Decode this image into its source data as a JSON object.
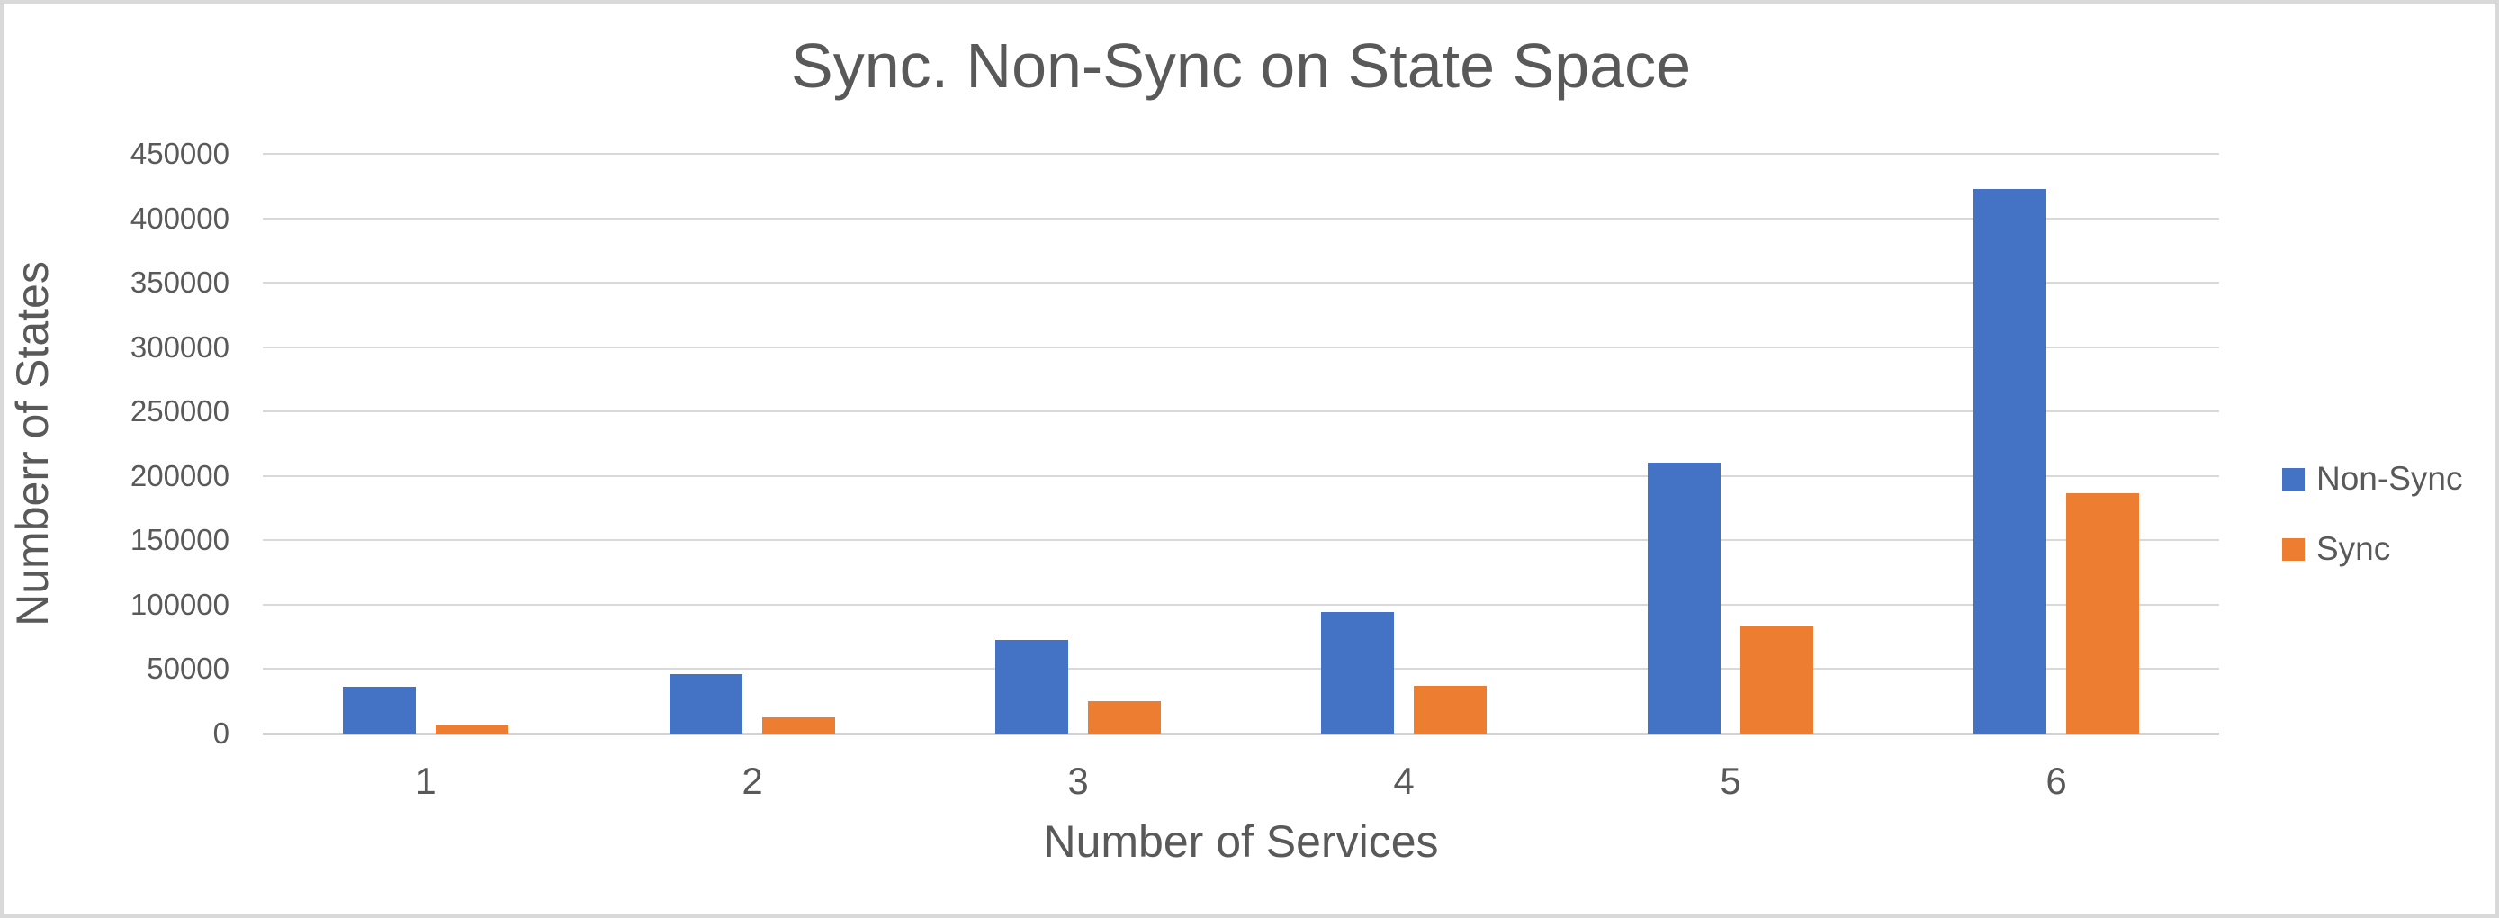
{
  "chart_data": {
    "type": "bar",
    "title": "Sync. Non-Sync on State Space",
    "xlabel": "Number of Services",
    "ylabel": "Numberr of States",
    "categories": [
      "1",
      "2",
      "3",
      "4",
      "5",
      "6"
    ],
    "series": [
      {
        "name": "Non-Sync",
        "color": "#4472C4",
        "values": [
          36500,
          46000,
          73000,
          94000,
          210000,
          423000
        ]
      },
      {
        "name": "Sync",
        "color": "#ED7D31",
        "values": [
          6500,
          12500,
          25000,
          37000,
          83500,
          186500
        ]
      }
    ],
    "ylim": [
      0,
      450000
    ],
    "ytick_step": 50000,
    "ytick_labels": [
      "0",
      "50000",
      "100000",
      "150000",
      "200000",
      "250000",
      "300000",
      "350000",
      "400000",
      "450000"
    ],
    "grid": "horizontal",
    "legend_position": "right",
    "colors": {
      "text": "#595959",
      "gridline": "#d9d9d9",
      "frame_border": "#d9d9d9",
      "background": "#ffffff"
    }
  }
}
